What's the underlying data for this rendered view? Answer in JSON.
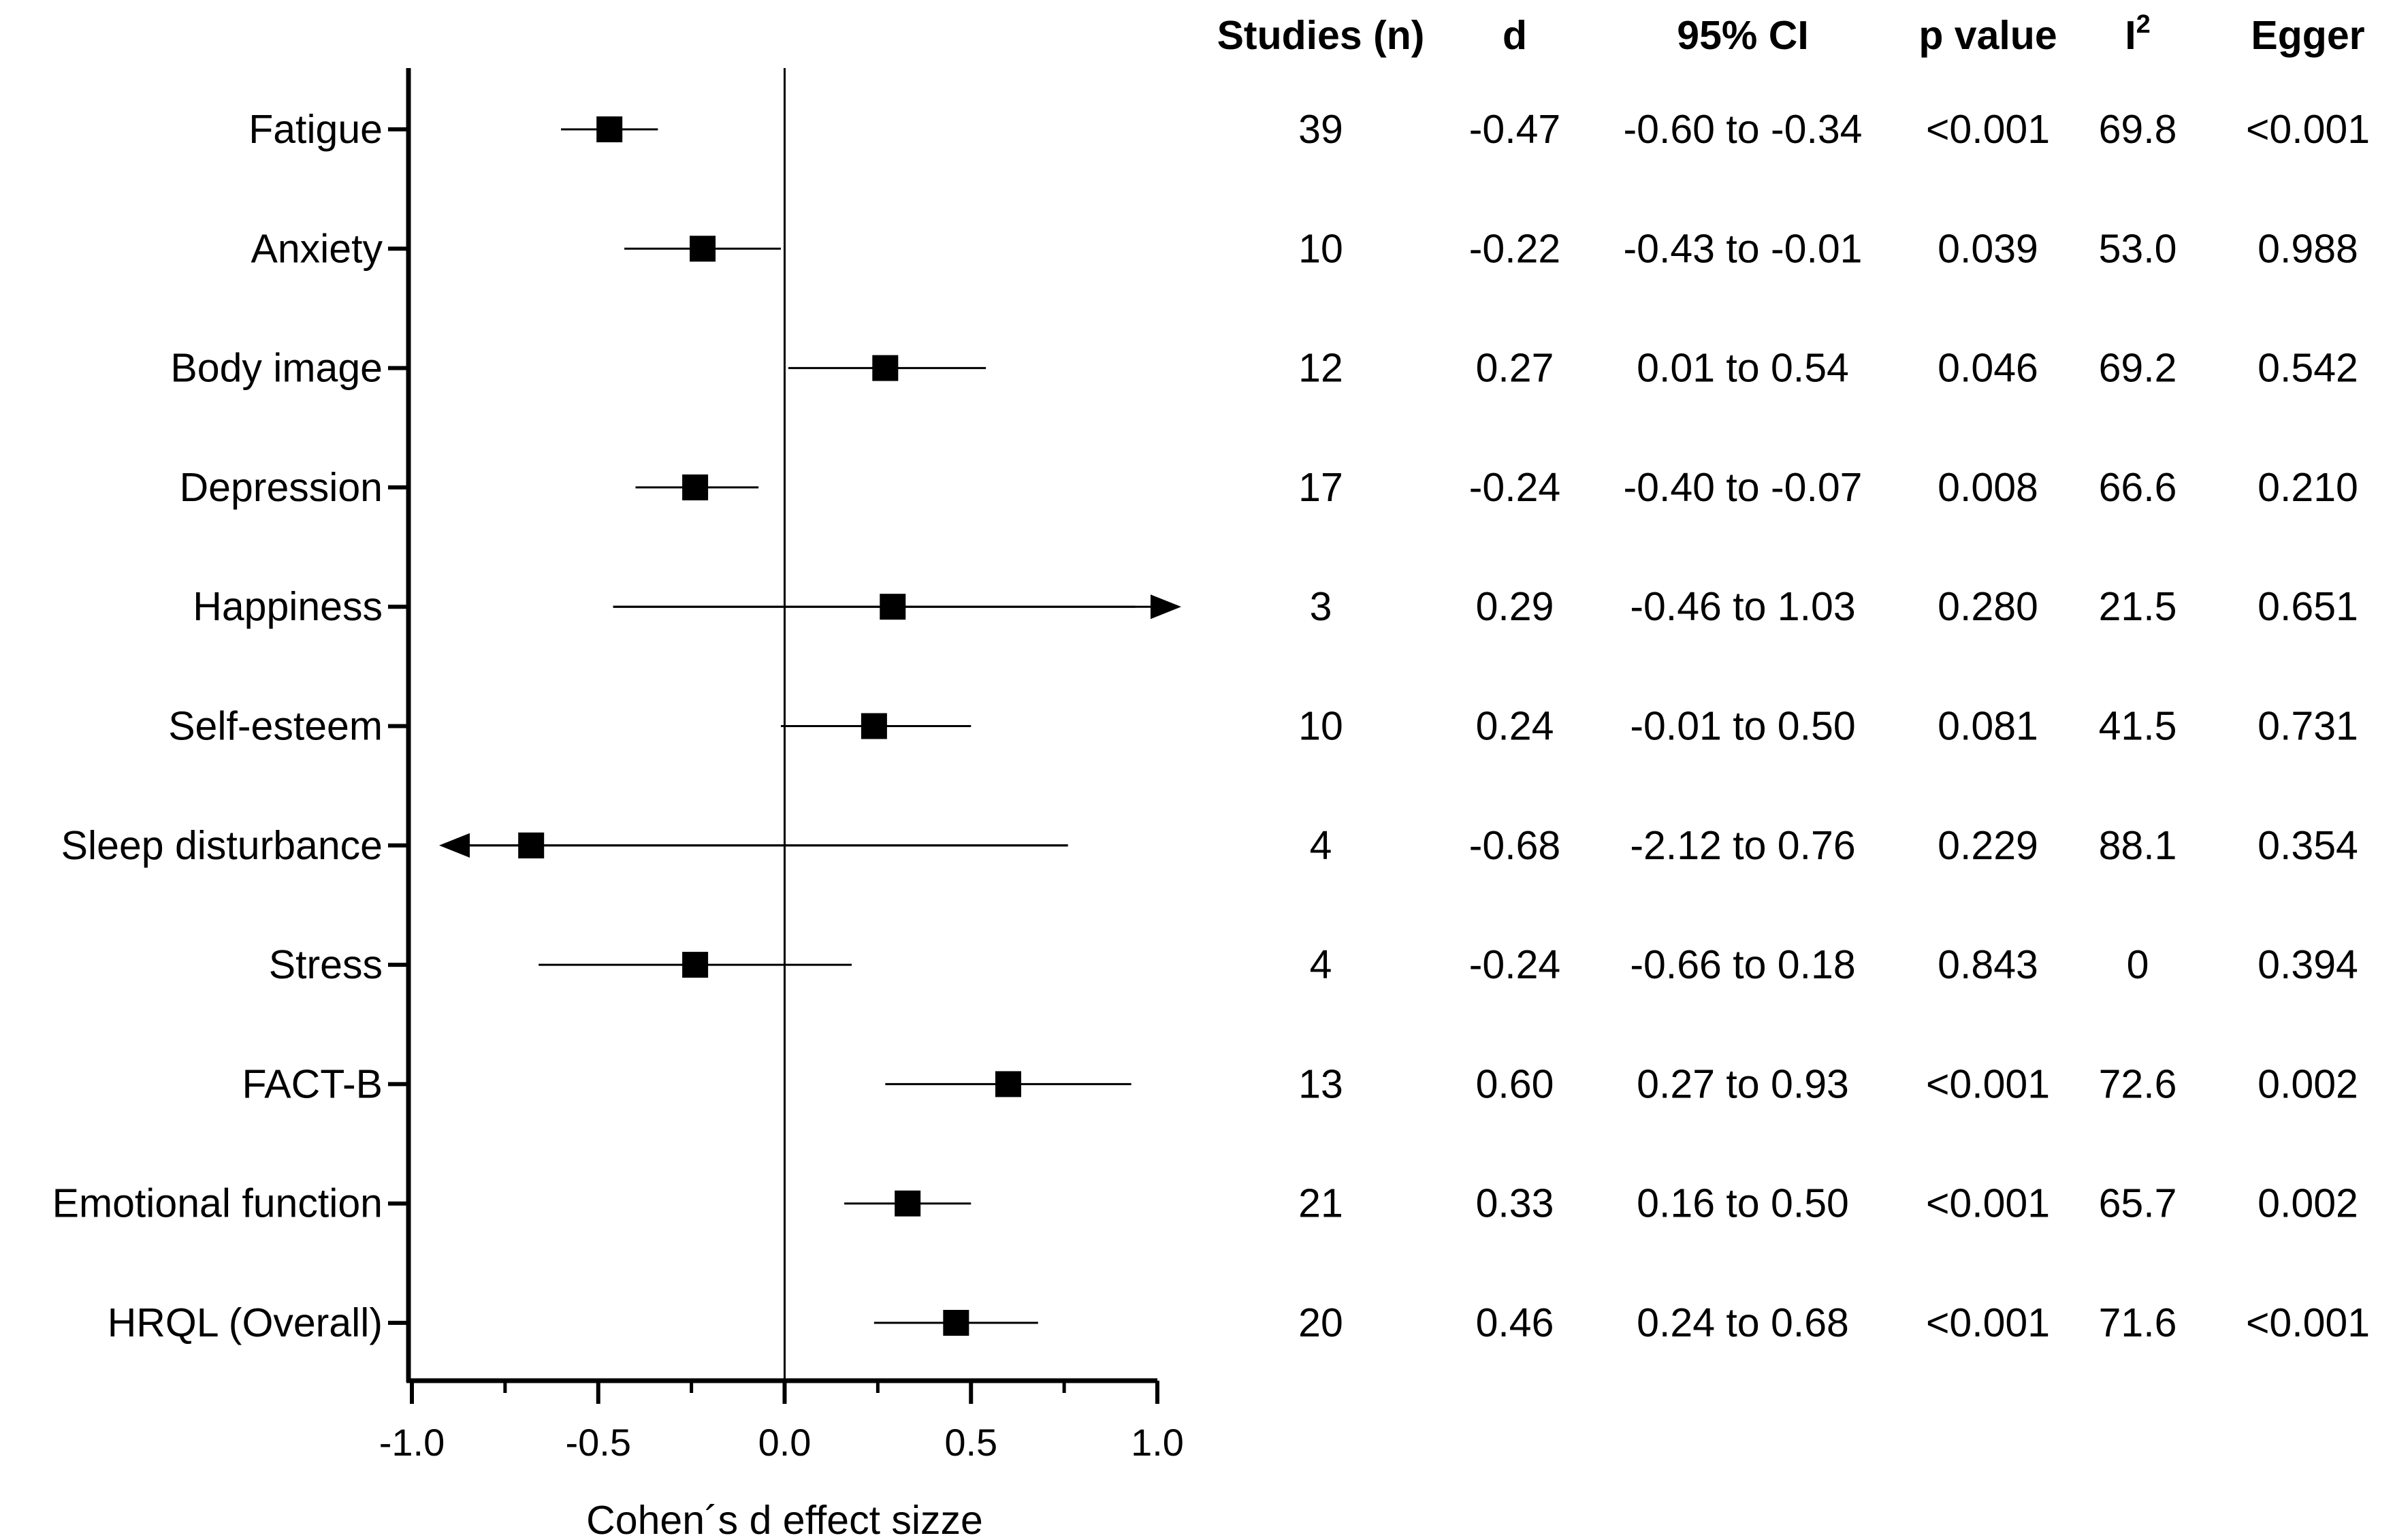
{
  "chart_data": {
    "type": "forest",
    "xlabel": "Cohen´s d effect sizze",
    "xlim": [
      -1.0,
      1.0
    ],
    "xticks": [
      "-1.0",
      "-0.5",
      "0.0",
      "0.5",
      "1.0"
    ],
    "reference_line": 0.0,
    "columns": [
      {
        "key": "n",
        "label": "Studies (n)"
      },
      {
        "key": "d_text",
        "label": "d"
      },
      {
        "key": "ci_text",
        "label": "95% CI"
      },
      {
        "key": "p",
        "label": "p value"
      },
      {
        "key": "i2",
        "label": "I",
        "superscript": "2"
      },
      {
        "key": "egger",
        "label": "Egger"
      }
    ],
    "rows": [
      {
        "label": "Fatigue",
        "d": -0.47,
        "lo": -0.6,
        "hi": -0.34,
        "n": "39",
        "d_text": "-0.47",
        "ci_text": "-0.60 to -0.34",
        "p": "<0.001",
        "i2": "69.8",
        "egger": "<0.001"
      },
      {
        "label": "Anxiety",
        "d": -0.22,
        "lo": -0.43,
        "hi": -0.01,
        "n": "10",
        "d_text": "-0.22",
        "ci_text": "-0.43 to -0.01",
        "p": "0.039",
        "i2": "53.0",
        "egger": "0.988"
      },
      {
        "label": "Body image",
        "d": 0.27,
        "lo": 0.01,
        "hi": 0.54,
        "n": "12",
        "d_text": "0.27",
        "ci_text": "0.01 to 0.54",
        "p": "0.046",
        "i2": "69.2",
        "egger": "0.542"
      },
      {
        "label": "Depression",
        "d": -0.24,
        "lo": -0.4,
        "hi": -0.07,
        "n": "17",
        "d_text": "-0.24",
        "ci_text": "-0.40 to -0.07",
        "p": "0.008",
        "i2": "66.6",
        "egger": "0.210"
      },
      {
        "label": "Happiness",
        "d": 0.29,
        "lo": -0.46,
        "hi": 1.03,
        "n": "3",
        "d_text": "0.29",
        "ci_text": "-0.46 to 1.03",
        "p": "0.280",
        "i2": "21.5",
        "egger": "0.651"
      },
      {
        "label": "Self-esteem",
        "d": 0.24,
        "lo": -0.01,
        "hi": 0.5,
        "n": "10",
        "d_text": "0.24",
        "ci_text": "-0.01 to 0.50",
        "p": "0.081",
        "i2": "41.5",
        "egger": "0.731"
      },
      {
        "label": "Sleep disturbance",
        "d": -0.68,
        "lo": -2.12,
        "hi": 0.76,
        "n": "4",
        "d_text": "-0.68",
        "ci_text": "-2.12 to 0.76",
        "p": "0.229",
        "i2": "88.1",
        "egger": "0.354"
      },
      {
        "label": "Stress",
        "d": -0.24,
        "lo": -0.66,
        "hi": 0.18,
        "n": "4",
        "d_text": "-0.24",
        "ci_text": "-0.66 to 0.18",
        "p": "0.843",
        "i2": "0",
        "egger": "0.394"
      },
      {
        "label": "FACT-B",
        "d": 0.6,
        "lo": 0.27,
        "hi": 0.93,
        "n": "13",
        "d_text": "0.60",
        "ci_text": "0.27 to 0.93",
        "p": "<0.001",
        "i2": "72.6",
        "egger": "0.002"
      },
      {
        "label": "Emotional function",
        "d": 0.33,
        "lo": 0.16,
        "hi": 0.5,
        "n": "21",
        "d_text": "0.33",
        "ci_text": "0.16 to 0.50",
        "p": "<0.001",
        "i2": "65.7",
        "egger": "0.002"
      },
      {
        "label": "HRQL (Overall)",
        "d": 0.46,
        "lo": 0.24,
        "hi": 0.68,
        "n": "20",
        "d_text": "0.46",
        "ci_text": "0.24 to 0.68",
        "p": "<0.001",
        "i2": "71.6",
        "egger": "<0.001"
      }
    ]
  }
}
